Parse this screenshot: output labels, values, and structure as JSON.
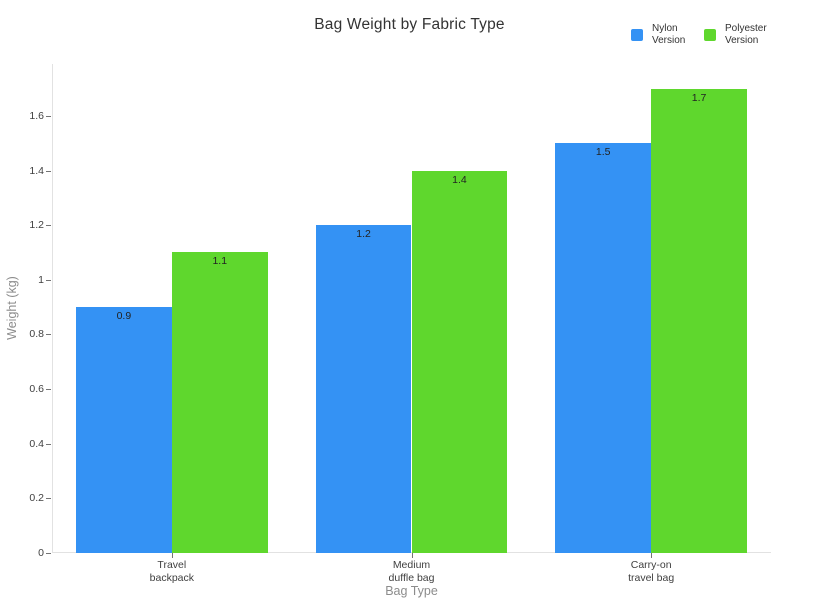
{
  "chart_data": {
    "type": "bar",
    "title": "Bag Weight by Fabric Type",
    "xlabel": "Bag Type",
    "ylabel": "Weight (kg)",
    "categories": [
      "Travel\nbackpack",
      "Medium\nduffle bag",
      "Carry-on\ntravel bag"
    ],
    "series": [
      {
        "name": "Nylon Version",
        "color": "#3492F4",
        "values": [
          0.9,
          1.2,
          1.5
        ]
      },
      {
        "name": "Polyester Version",
        "color": "#5FD72D",
        "values": [
          1.1,
          1.4,
          1.7
        ]
      }
    ],
    "yticks": [
      0,
      0.2,
      0.4,
      0.6,
      0.8,
      1,
      1.2,
      1.4,
      1.6
    ],
    "ylim": [
      0,
      1.79
    ],
    "bar_label_position": "inside-top",
    "grid": false,
    "legend_position": "top-right",
    "colors": {
      "axis_line": "#e2e2e2",
      "tick_mark": "#737373",
      "tick_label": "#3f3f3f",
      "axis_title": "#8c8c8c",
      "title": "#333333",
      "bar_label": "#222222",
      "background": "#ffffff"
    }
  }
}
